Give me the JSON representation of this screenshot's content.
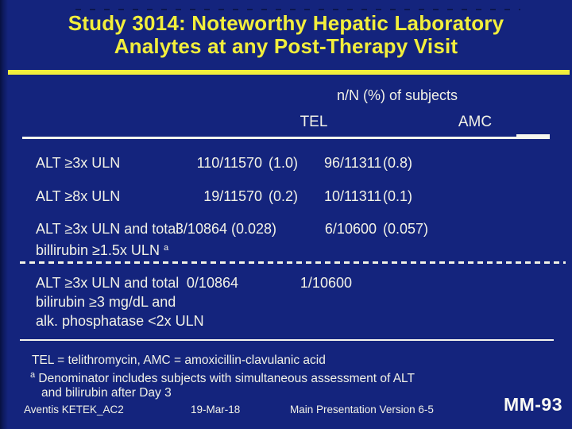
{
  "slide": {
    "title_line1": "Study 3014: Noteworthy Hepatic Laboratory",
    "title_line2": "Analytes at any Post-Therapy Visit",
    "accent_yellow": "#f2ee3c",
    "background_navy": "#14247d",
    "text_white": "#f2f2e6"
  },
  "table": {
    "header": "n/N (%) of subjects",
    "col_tel": "TEL",
    "col_amc": "AMC",
    "rows": [
      {
        "label_line1": "ALT ≥3x ULN",
        "tel_n": "110/11570",
        "tel_pct": "(1.0)",
        "amc_n": "96/11311",
        "amc_pct": "(0.8)"
      },
      {
        "label_line1": "ALT ≥8x ULN",
        "tel_n": "19/11570",
        "tel_pct": "(0.2)",
        "amc_n": "10/11311",
        "amc_pct": "(0.1)"
      },
      {
        "label_line1": "ALT ≥3x ULN and total",
        "label_line2": "billirubin ≥1.5x ULN ",
        "label_sup": "a",
        "tel_n": "3/10864",
        "tel_pct": "(0.028)",
        "amc_n": "6/10600",
        "amc_pct": "(0.057)"
      },
      {
        "label_line1": "ALT ≥3x ULN and total",
        "label_line2": "bilirubin ≥3 mg/dL and",
        "label_line3": "alk. phosphatase <2x ULN",
        "tel_n": "0/10864",
        "tel_pct": "",
        "amc_n": "1/10600",
        "amc_pct": ""
      }
    ]
  },
  "footnotes": {
    "abbrev": "TEL = telithromycin, AMC = amoxicillin-clavulanic acid",
    "fn_a_sup": "a",
    "fn_a_text": " Denominator includes subjects with simultaneous assessment of ALT",
    "fn_a_cont": "and bilirubin after Day 3"
  },
  "footer": {
    "source": "Aventis KETEK_AC2",
    "date": "19-Mar-18",
    "version": "Main Presentation Version 6-5",
    "slide_number": "MM-93"
  }
}
